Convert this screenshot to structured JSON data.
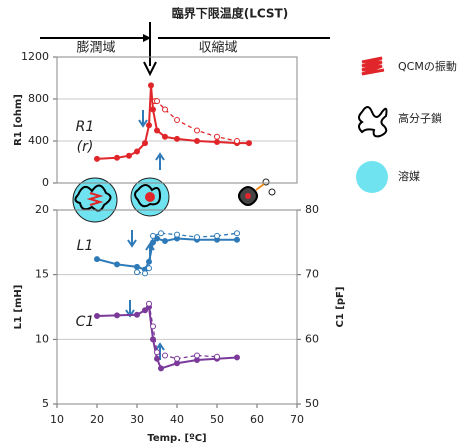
{
  "header": {
    "title": "臨界下限温度(LCST)",
    "regions": [
      "膨潤域",
      "収縮域"
    ]
  },
  "legend": [
    "QCMの振動",
    "高分子鎖",
    "溶媒"
  ],
  "chart_data": [
    {
      "type": "line",
      "ylabel": "R1 [ohm]",
      "xlim": [
        10,
        70
      ],
      "ylim": [
        0,
        1200
      ],
      "yticks": [
        0,
        400,
        800,
        1200
      ],
      "grid": true,
      "annotations": [
        "(r)"
      ],
      "series": [
        {
          "name": "R1",
          "color": "#e0262a",
          "style": "solid",
          "x": [
            20,
            25,
            28,
            30,
            32,
            33,
            33.5,
            34,
            35,
            37,
            40,
            45,
            50,
            55,
            58
          ],
          "values": [
            230,
            240,
            260,
            300,
            380,
            550,
            930,
            700,
            500,
            440,
            420,
            400,
            390,
            380,
            380
          ]
        },
        {
          "color": "#e0262a",
          "style": "dashed",
          "x": [
            34.5,
            35,
            37,
            40,
            45,
            50,
            55
          ],
          "values": [
            780,
            780,
            700,
            600,
            500,
            440,
            400
          ]
        }
      ]
    },
    {
      "type": "line",
      "xlabel": "Temp. [ºC]",
      "ylabel": "L1 [mH]",
      "y2label": "C1 [pF]",
      "xlim": [
        10,
        70
      ],
      "xticks": [
        10,
        20,
        30,
        40,
        50,
        60,
        70
      ],
      "ylim": [
        5,
        20
      ],
      "yticks": [
        5,
        10,
        15,
        20
      ],
      "y2lim": [
        50,
        80
      ],
      "y2ticks": [
        50,
        60,
        70,
        80
      ],
      "grid": true,
      "series": [
        {
          "name": "L1",
          "color": "#2e7ab8",
          "style": "solid",
          "x": [
            20,
            25,
            30,
            32,
            33,
            34,
            35,
            37,
            40,
            45,
            50,
            55
          ],
          "values": [
            16.2,
            15.8,
            15.6,
            15.4,
            16,
            17.5,
            17.8,
            17.6,
            17.8,
            17.7,
            17.7,
            17.7
          ]
        },
        {
          "color": "#2e7ab8",
          "style": "dashed",
          "x": [
            30,
            32,
            33,
            34,
            36,
            40,
            45,
            50,
            55
          ],
          "values": [
            15.2,
            15.1,
            15.5,
            18,
            18.2,
            18.1,
            17.9,
            18,
            18.2
          ]
        },
        {
          "name": "C1",
          "color": "#7b3a9a",
          "style": "solid",
          "axis": "y2",
          "x": [
            20,
            25,
            30,
            32,
            33,
            34,
            35,
            36,
            40,
            45,
            50,
            55
          ],
          "values": [
            63.6,
            63.7,
            63.8,
            64.5,
            65,
            60,
            57,
            55.5,
            56.3,
            56.8,
            57,
            57.2
          ]
        },
        {
          "color": "#7b3a9a",
          "style": "dashed",
          "axis": "y2",
          "x": [
            33,
            34,
            35,
            37,
            40,
            45,
            50
          ],
          "values": [
            65.5,
            62,
            58,
            57.5,
            57,
            57.5,
            57.3
          ]
        }
      ]
    }
  ]
}
